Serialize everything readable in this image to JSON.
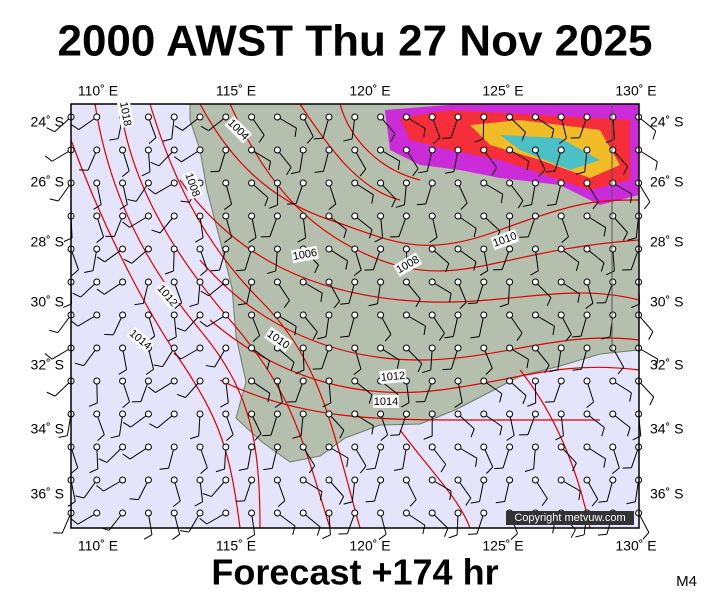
{
  "title": "2000 AWST Thu 27 Nov 2025",
  "top_axis_labels": [
    "110˚ E",
    "115˚ E",
    "120˚ E",
    "125˚ E",
    "130˚ E"
  ],
  "bottom_axis_labels": [
    "110˚ E",
    "115˚ E",
    "120˚ E",
    "125˚ E",
    "130˚ E"
  ],
  "left_axis_labels": [
    "24˚ S",
    "26˚ S",
    "28˚ S",
    "30˚ S",
    "32˚ S",
    "34˚ S",
    "36˚ S"
  ],
  "right_axis_labels": [
    "24˚ S",
    "26˚ S",
    "28˚ S",
    "30˚ S",
    "32˚ S",
    "34˚ S",
    "36˚ S"
  ],
  "isobar_labels": [
    "1018",
    "1004",
    "1008",
    "1006",
    "1008",
    "1010",
    "1012",
    "1014",
    "1010",
    "1012",
    "1014"
  ],
  "copyright": "Copyright metvuw.com",
  "footer": "Forecast +174 hr",
  "model": "M4"
}
